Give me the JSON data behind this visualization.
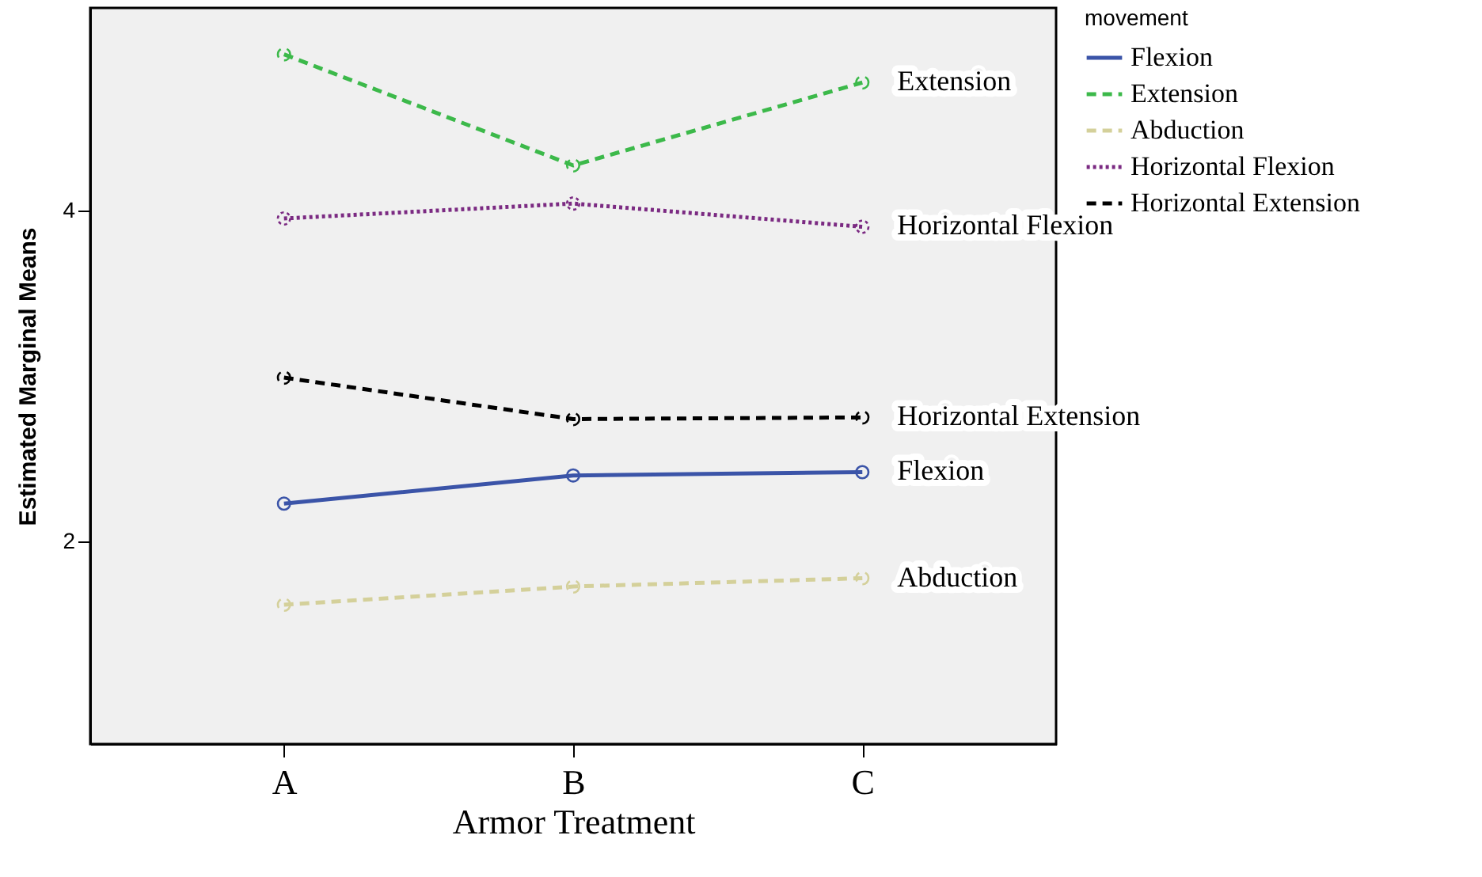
{
  "chart_data": {
    "type": "line",
    "xlabel": "Armor Treatment",
    "ylabel": "Estimated Marginal Means",
    "legend_title": "movement",
    "categories": [
      "A",
      "B",
      "C"
    ],
    "series": [
      {
        "name": "Flexion",
        "color": "#3b54a8",
        "line_style": "solid",
        "values": [
          2.23,
          2.4,
          2.42
        ]
      },
      {
        "name": "Extension",
        "color": "#3cb94a",
        "line_style": "dashed",
        "values": [
          4.94,
          4.27,
          4.77
        ]
      },
      {
        "name": "Abduction",
        "color": "#d4d09a",
        "line_style": "dashed",
        "values": [
          1.62,
          1.73,
          1.78
        ]
      },
      {
        "name": "Horizontal Flexion",
        "color": "#7b2a82",
        "line_style": "dotted",
        "values": [
          3.95,
          4.04,
          3.9
        ]
      },
      {
        "name": "Horizontal Extension",
        "color": "#000000",
        "line_style": "dashed",
        "values": [
          2.99,
          2.74,
          2.75
        ]
      }
    ],
    "annotations": [
      {
        "text": "Extension",
        "x": "C",
        "y": 4.77
      },
      {
        "text": "Horizontal Flexion",
        "x": "C",
        "y": 3.9
      },
      {
        "text": "Horizontal Extension",
        "x": "C",
        "y": 2.75
      },
      {
        "text": "Flexion",
        "x": "C",
        "y": 2.42
      },
      {
        "text": "Abduction",
        "x": "C",
        "y": 1.78
      }
    ],
    "ylim": [
      0.78,
      5.22
    ],
    "yticks": [
      2,
      4
    ],
    "grid": false,
    "legend": "top right",
    "marker": "circle"
  }
}
